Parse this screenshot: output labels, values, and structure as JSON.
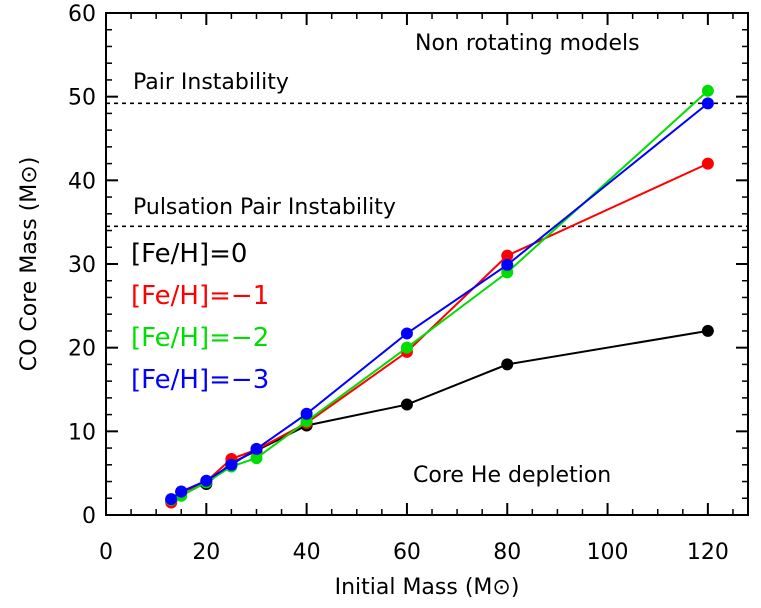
{
  "chart_data": {
    "type": "line",
    "xlabel": "Initial Mass (M⊙)",
    "ylabel": "CO Core Mass (M⊙)",
    "xlim": [
      0,
      128
    ],
    "ylim": [
      0,
      60
    ],
    "xticks": [
      0,
      20,
      40,
      60,
      80,
      100,
      120
    ],
    "yticks": [
      0,
      10,
      20,
      30,
      40,
      50,
      60
    ],
    "xtick_labels": [
      "0",
      "20",
      "40",
      "60",
      "80",
      "100",
      "120"
    ],
    "ytick_labels": [
      "0",
      "10",
      "20",
      "30",
      "40",
      "50",
      "60"
    ],
    "grid": false,
    "legend_placement": "left",
    "annotations": {
      "top_right": "Non rotating models",
      "bottom_right": "Core He depletion",
      "pair_instability": "Pair Instability",
      "pulsation_pair_instability": "Pulsation Pair Instability"
    },
    "reference_lines": [
      {
        "label": "Pair Instability",
        "y": 49.2,
        "style": "dotted"
      },
      {
        "label": "Pulsation Pair Instability",
        "y": 34.5,
        "style": "dotted"
      }
    ],
    "series": [
      {
        "name": "[Fe/H]=0",
        "color": "#000000",
        "x": [
          13,
          15,
          20,
          25,
          30,
          40,
          60,
          80,
          120
        ],
        "y": [
          1.7,
          2.8,
          3.7,
          6.2,
          7.7,
          10.7,
          13.2,
          18.0,
          22.0
        ]
      },
      {
        "name": "[Fe/H]=−1",
        "color": "#ff0000",
        "x": [
          13,
          15,
          20,
          25,
          30,
          40,
          60,
          80,
          120
        ],
        "y": [
          1.5,
          2.7,
          4.0,
          6.7,
          7.8,
          11.0,
          19.5,
          31.0,
          42.0
        ]
      },
      {
        "name": "[Fe/H]=−2",
        "color": "#00dd00",
        "x": [
          13,
          15,
          20,
          25,
          30,
          40,
          60,
          80,
          120
        ],
        "y": [
          1.8,
          2.3,
          3.9,
          5.8,
          6.8,
          11.2,
          20.0,
          29.0,
          50.7
        ]
      },
      {
        "name": "[Fe/H]=−3",
        "color": "#0000ff",
        "x": [
          13,
          15,
          20,
          25,
          30,
          40,
          60,
          80,
          120
        ],
        "y": [
          1.9,
          2.8,
          4.1,
          6.0,
          7.9,
          12.1,
          21.7,
          29.9,
          49.2
        ]
      }
    ]
  }
}
